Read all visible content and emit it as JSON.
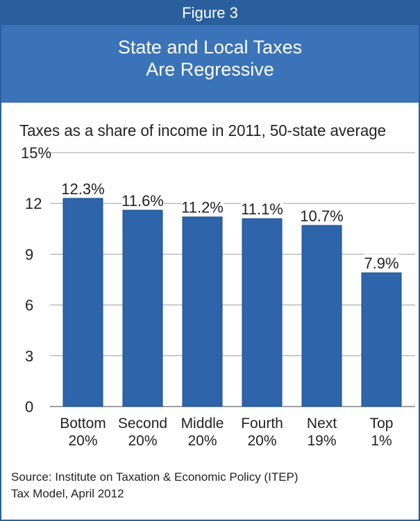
{
  "figure_label": "Figure 3",
  "title_lines": [
    "State and Local Taxes",
    "Are Regressive"
  ],
  "source_lines": [
    "Source: Institute on Taxation & Economic Policy (ITEP)",
    "Tax Model, April 2012"
  ],
  "colors": {
    "header_dark": "#2a5f9e",
    "header_light": "#3a73b7",
    "bar": "#2d64aa",
    "bar_edge": "#1d4e8c",
    "gridline": "#9e9e9e",
    "text": "#222222"
  },
  "chart_data": {
    "type": "bar",
    "title": "Taxes as a share of income in 2011, 50-state average",
    "categories": [
      "Bottom 20%",
      "Second 20%",
      "Middle 20%",
      "Fourth 20%",
      "Next 19%",
      "Top 1%"
    ],
    "category_lines": [
      [
        "Bottom",
        "20%"
      ],
      [
        "Second",
        "20%"
      ],
      [
        "Middle",
        "20%"
      ],
      [
        "Fourth",
        "20%"
      ],
      [
        "Next",
        "19%"
      ],
      [
        "Top",
        "1%"
      ]
    ],
    "values": [
      12.3,
      11.6,
      11.2,
      11.1,
      10.7,
      7.9
    ],
    "value_labels": [
      "12.3%",
      "11.6%",
      "11.2%",
      "11.1%",
      "10.7%",
      "7.9%"
    ],
    "yticks": [
      0,
      3,
      6,
      9,
      12,
      15
    ],
    "ytick_labels": [
      "0",
      "3",
      "6",
      "9",
      "12",
      "15%"
    ],
    "ylim": [
      0,
      15
    ],
    "xlabel": "",
    "ylabel": "",
    "grid": true
  }
}
